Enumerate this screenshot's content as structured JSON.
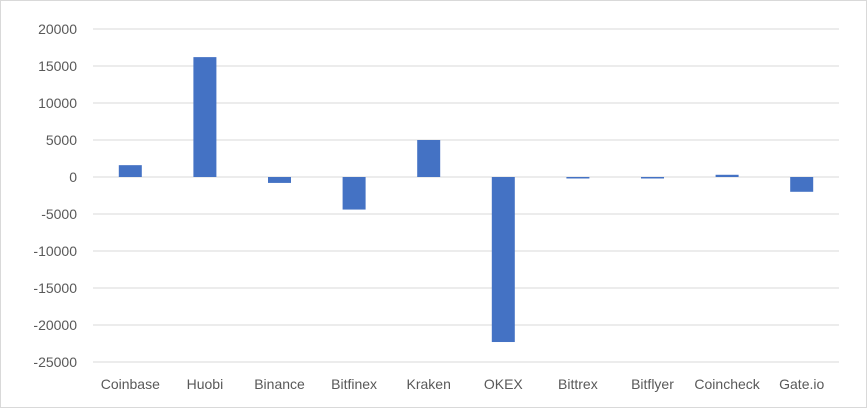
{
  "chart_data": {
    "type": "bar",
    "title": "",
    "xlabel": "",
    "ylabel": "",
    "categories": [
      "Coinbase",
      "Huobi",
      "Binance",
      "Bitfinex",
      "Kraken",
      "OKEX",
      "Bittrex",
      "Bitflyer",
      "Coincheck",
      "Gate.io"
    ],
    "values": [
      1600,
      16200,
      -800,
      -4400,
      5000,
      -22300,
      -200,
      -200,
      300,
      -2000
    ],
    "ylim": [
      -25000,
      20000
    ],
    "yticks": [
      20000,
      15000,
      10000,
      5000,
      0,
      -5000,
      -10000,
      -15000,
      -20000,
      -25000
    ],
    "grid": true,
    "legend": "none",
    "bar_color": "#4472c4",
    "grid_color": "#d9d9d9"
  }
}
